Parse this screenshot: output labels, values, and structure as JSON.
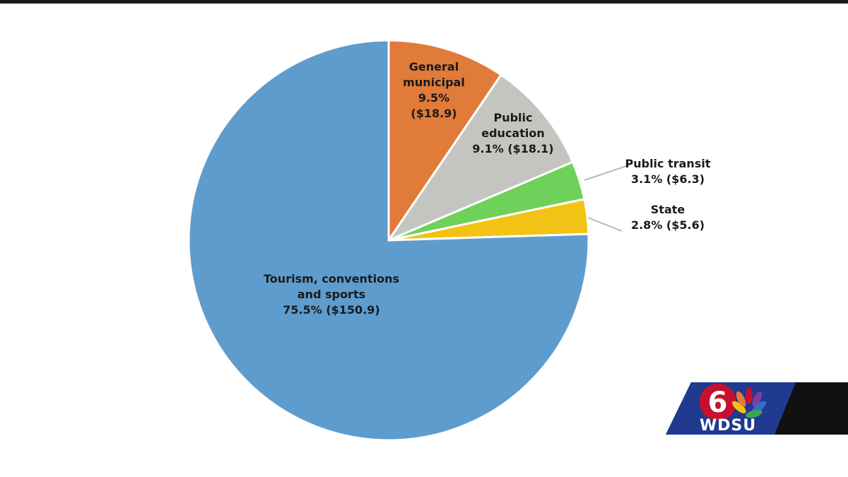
{
  "chart_data": {
    "type": "pie",
    "title": "",
    "slices": [
      {
        "label_lines": [
          "General",
          "municipal",
          "9.5%",
          "($18.9)"
        ],
        "name": "General municipal",
        "percent": 9.5,
        "value": 18.9,
        "color": "#E07B39"
      },
      {
        "label_lines": [
          "Public",
          "education",
          "9.1% ($18.1)"
        ],
        "name": "Public education",
        "percent": 9.1,
        "value": 18.1,
        "color": "#C4C4C0"
      },
      {
        "label_lines": [
          "Public transit",
          "3.1% ($6.3)"
        ],
        "name": "Public transit",
        "percent": 3.1,
        "value": 6.3,
        "color": "#6FD15A"
      },
      {
        "label_lines": [
          "State",
          "2.8% ($5.6)"
        ],
        "name": "State",
        "percent": 2.8,
        "value": 5.6,
        "color": "#F2C314"
      },
      {
        "label_lines": [
          "Tourism, conventions",
          "and sports",
          "75.5% ($150.9)"
        ],
        "name": "Tourism, conventions and sports",
        "percent": 75.5,
        "value": 150.9,
        "color": "#5E9CCD"
      }
    ]
  },
  "logo": {
    "channel": "6",
    "call_letters": "WDSU"
  }
}
